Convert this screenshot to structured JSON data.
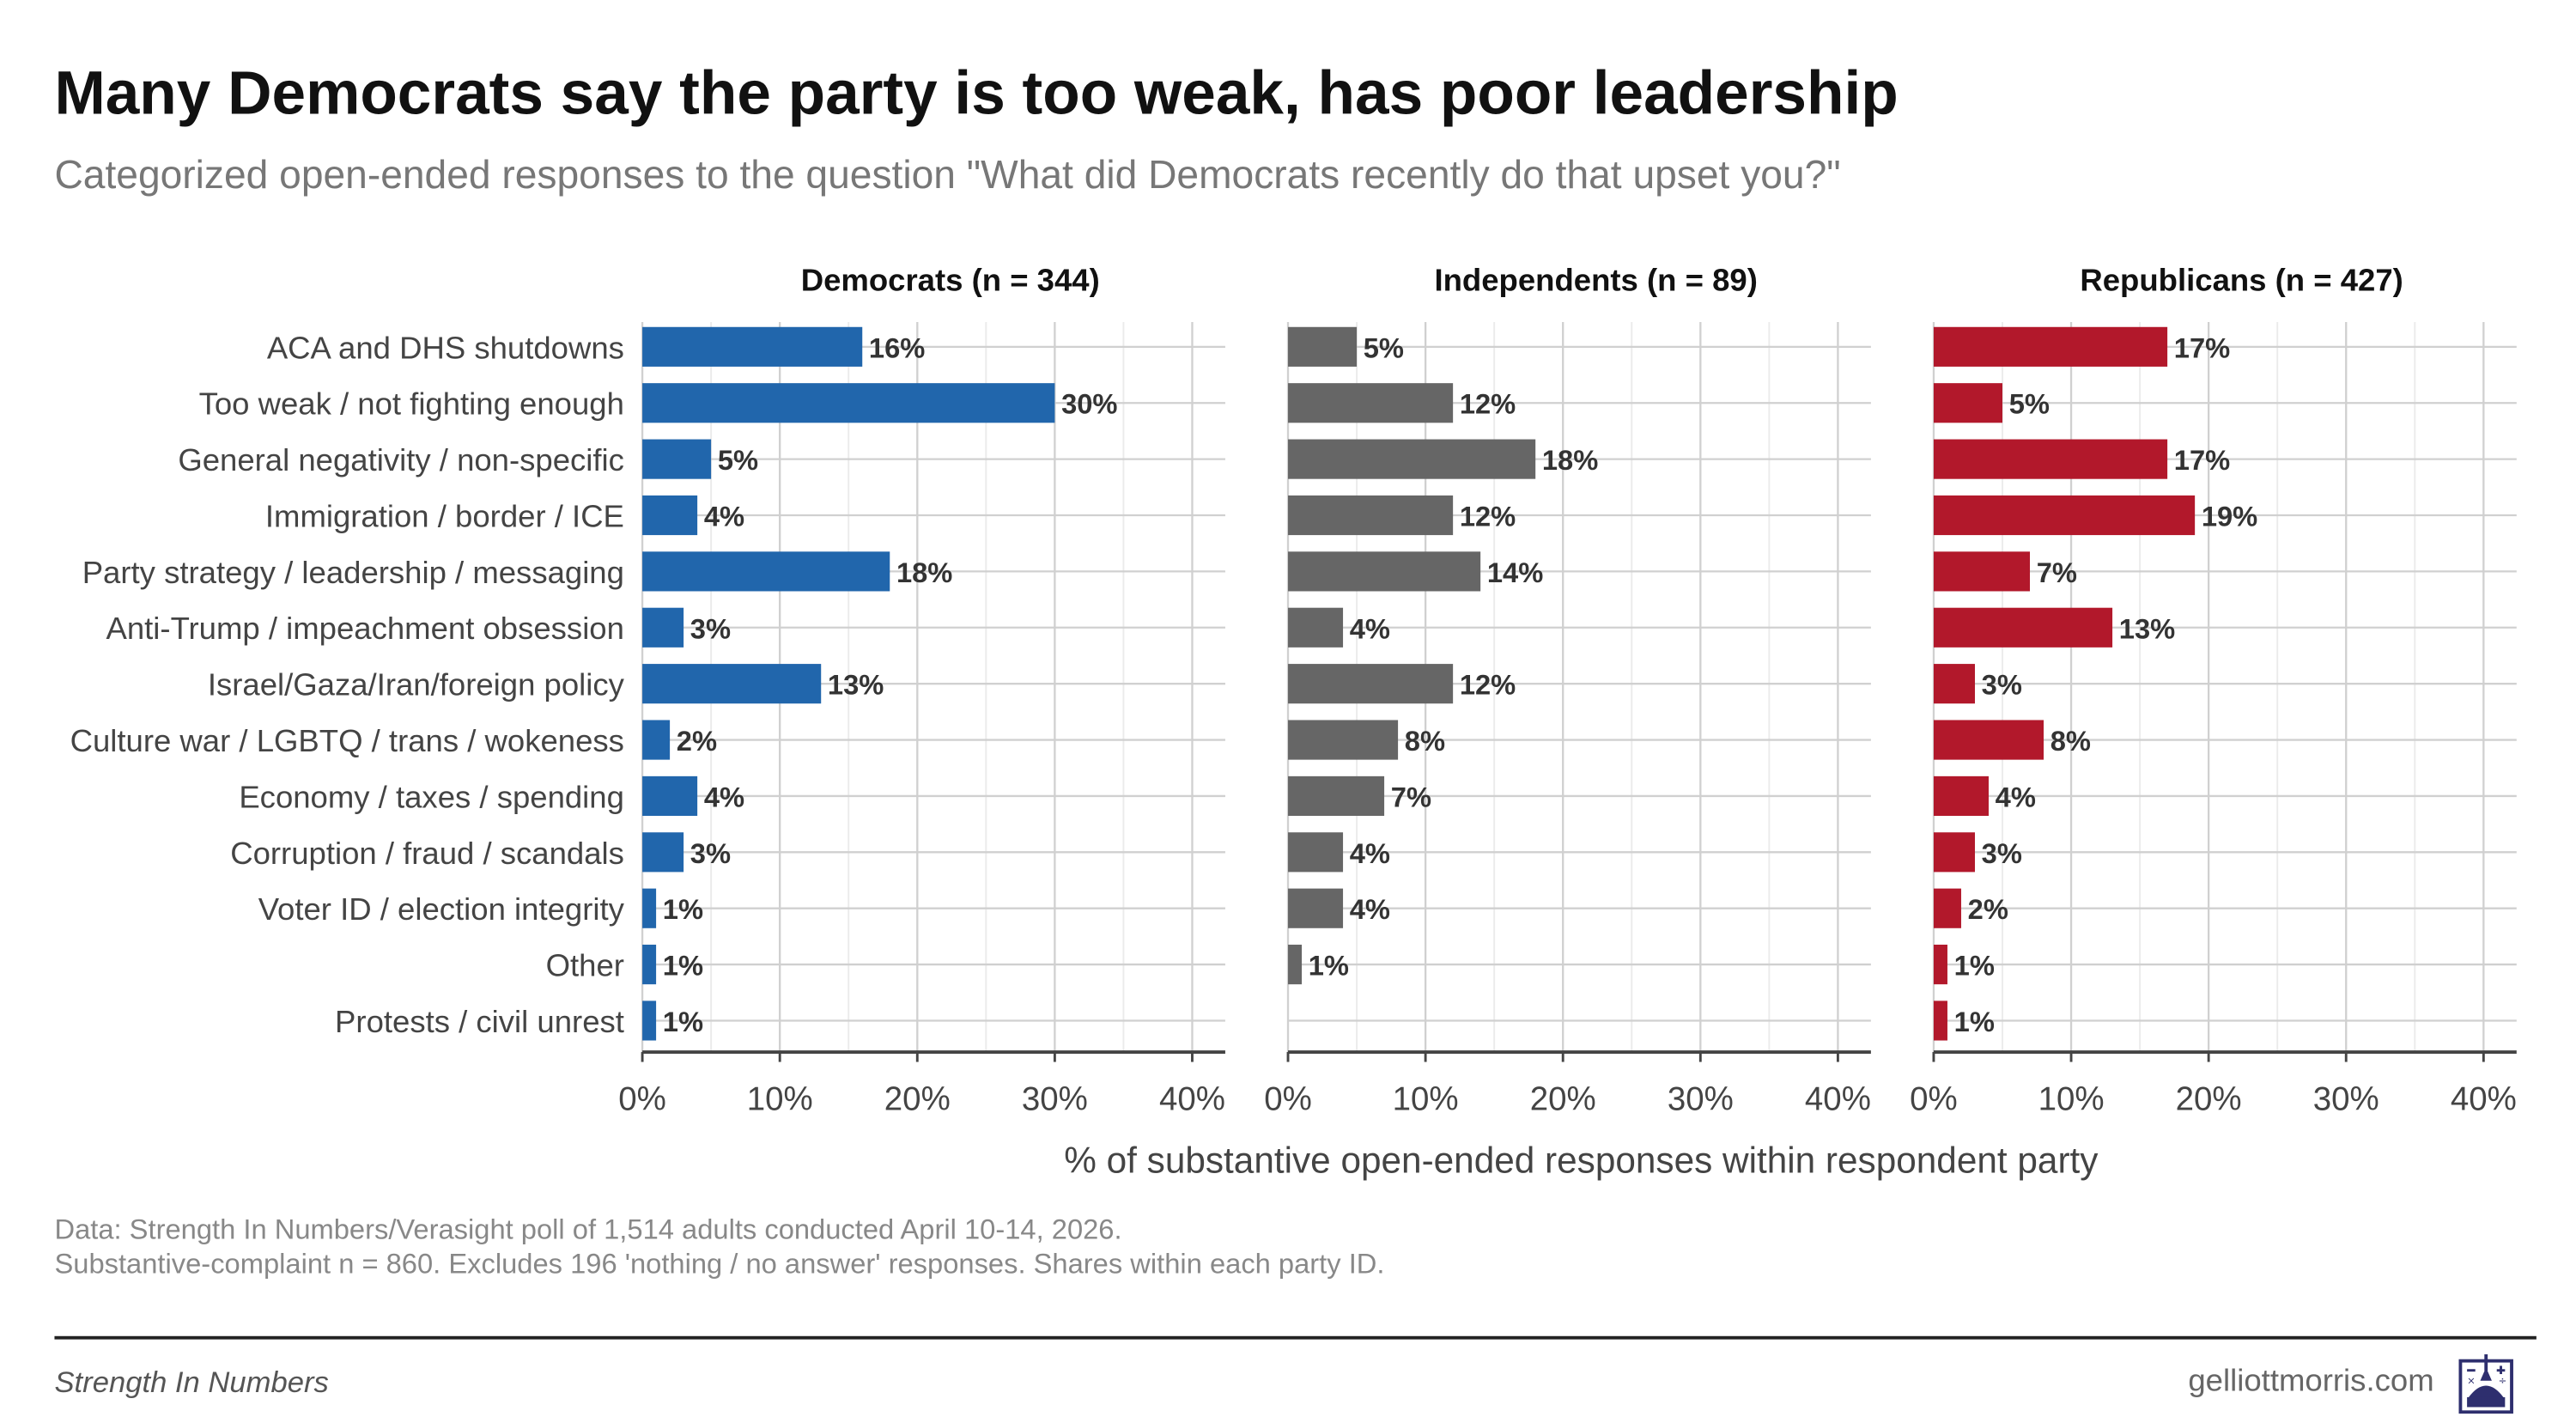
{
  "title": "Many Democrats say the party is too weak, has poor leadership",
  "subtitle": "Categorized open-ended responses to the question \"What did Democrats recently do that upset you?\"",
  "notes": [
    "Data: Strength In Numbers/Verasight poll of 1,514 adults conducted April 10-14, 2026.",
    "Substantive-complaint n = 860. Excludes 196 'nothing / no answer' responses. Shares within each party ID."
  ],
  "footer": {
    "brand": "Strength In Numbers",
    "site": "gelliottmorris.com",
    "logo_text": "Strength In Numbers logo"
  },
  "chart_data": {
    "type": "bar",
    "orientation": "horizontal",
    "title": "Many Democrats say the party is too weak, has poor leadership",
    "xlabel": "% of substantive open-ended responses within respondent party",
    "xlim": [
      0,
      40
    ],
    "xticks": [
      "0%",
      "10%",
      "20%",
      "30%",
      "40%"
    ],
    "grid": true,
    "categories": [
      "ACA and DHS shutdowns",
      "Too weak / not fighting enough",
      "General negativity / non-specific",
      "Immigration / border / ICE",
      "Party strategy / leadership / messaging",
      "Anti-Trump / impeachment obsession",
      "Israel/Gaza/Iran/foreign policy",
      "Culture war / LGBTQ / trans / wokeness",
      "Economy / taxes / spending",
      "Corruption / fraud / scandals",
      "Voter ID / election integrity",
      "Other",
      "Protests / civil unrest"
    ],
    "series": [
      {
        "name": "Democrats (n = 344)",
        "color": "#2166ac",
        "values": [
          16,
          30,
          5,
          4,
          18,
          3,
          13,
          2,
          4,
          3,
          1,
          1,
          1
        ],
        "labels": [
          "16%",
          "30%",
          "5%",
          "4%",
          "18%",
          "3%",
          "13%",
          "2%",
          "4%",
          "3%",
          "1%",
          "1%",
          "1%"
        ]
      },
      {
        "name": "Independents (n = 89)",
        "color": "#666666",
        "values": [
          5,
          12,
          18,
          12,
          14,
          4,
          12,
          8,
          7,
          4,
          4,
          1,
          null
        ],
        "labels": [
          "5%",
          "12%",
          "18%",
          "12%",
          "14%",
          "4%",
          "12%",
          "8%",
          "7%",
          "4%",
          "4%",
          "1%",
          null
        ]
      },
      {
        "name": "Republicans (n = 427)",
        "color": "#b2182b",
        "values": [
          17,
          5,
          17,
          19,
          7,
          13,
          3,
          8,
          4,
          3,
          2,
          1,
          1
        ],
        "labels": [
          "17%",
          "5%",
          "17%",
          "19%",
          "7%",
          "13%",
          "3%",
          "8%",
          "4%",
          "3%",
          "2%",
          "1%",
          "1%"
        ]
      }
    ]
  }
}
